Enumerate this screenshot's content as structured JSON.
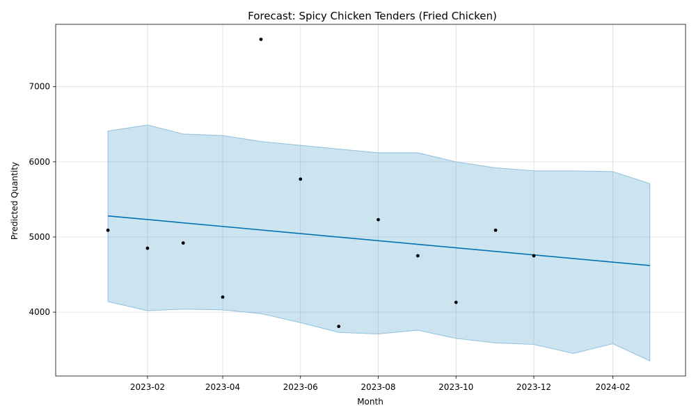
{
  "chart_data": {
    "type": "line",
    "title": "Forecast: Spicy Chicken Tenders (Fried Chicken)",
    "xlabel": "Month",
    "ylabel": "Predicted Quantity",
    "x_tick_labels": [
      "2023-02",
      "2023-04",
      "2023-06",
      "2023-08",
      "2023-10",
      "2023-12",
      "2024-02"
    ],
    "x_ticks": [
      "2023-02-01",
      "2023-04-01",
      "2023-06-01",
      "2023-08-01",
      "2023-10-01",
      "2023-12-01",
      "2024-02-01"
    ],
    "y_ticks": [
      4000,
      5000,
      6000,
      7000
    ],
    "xlim": [
      "2022-11-21",
      "2024-03-29"
    ],
    "ylim": [
      3150,
      7830
    ],
    "grid": true,
    "colors": {
      "line": "#0072b2",
      "band": "#0072b2",
      "points": "#000000",
      "band_edge": "#8fc1dc"
    },
    "series": [
      {
        "kind": "actual",
        "x": [
          "2023-01-01",
          "2023-02-01",
          "2023-03-01",
          "2023-04-01",
          "2023-05-01",
          "2023-06-01",
          "2023-07-01",
          "2023-08-01",
          "2023-09-01",
          "2023-10-01",
          "2023-11-01",
          "2023-12-01"
        ],
        "y": [
          5090,
          4850,
          4920,
          4200,
          7630,
          5770,
          3810,
          5230,
          4750,
          4130,
          5090,
          4750
        ]
      },
      {
        "kind": "forecast",
        "x": [
          "2023-01-01",
          "2024-03-01"
        ],
        "y": [
          5280,
          4620
        ]
      },
      {
        "kind": "uncertainty",
        "x": [
          "2023-01-01",
          "2023-02-01",
          "2023-03-01",
          "2023-04-01",
          "2023-05-01",
          "2023-06-01",
          "2023-07-01",
          "2023-08-01",
          "2023-09-01",
          "2023-10-01",
          "2023-11-01",
          "2023-12-01",
          "2024-01-01",
          "2024-02-01",
          "2024-03-01"
        ],
        "upper": [
          6410,
          6490,
          6370,
          6350,
          6270,
          6220,
          6170,
          6120,
          6120,
          6000,
          5920,
          5880,
          5880,
          5870,
          5710
        ],
        "lower": [
          4140,
          4020,
          4040,
          4030,
          3980,
          3860,
          3730,
          3710,
          3760,
          3650,
          3590,
          3570,
          3450,
          3580,
          3350
        ]
      }
    ]
  }
}
